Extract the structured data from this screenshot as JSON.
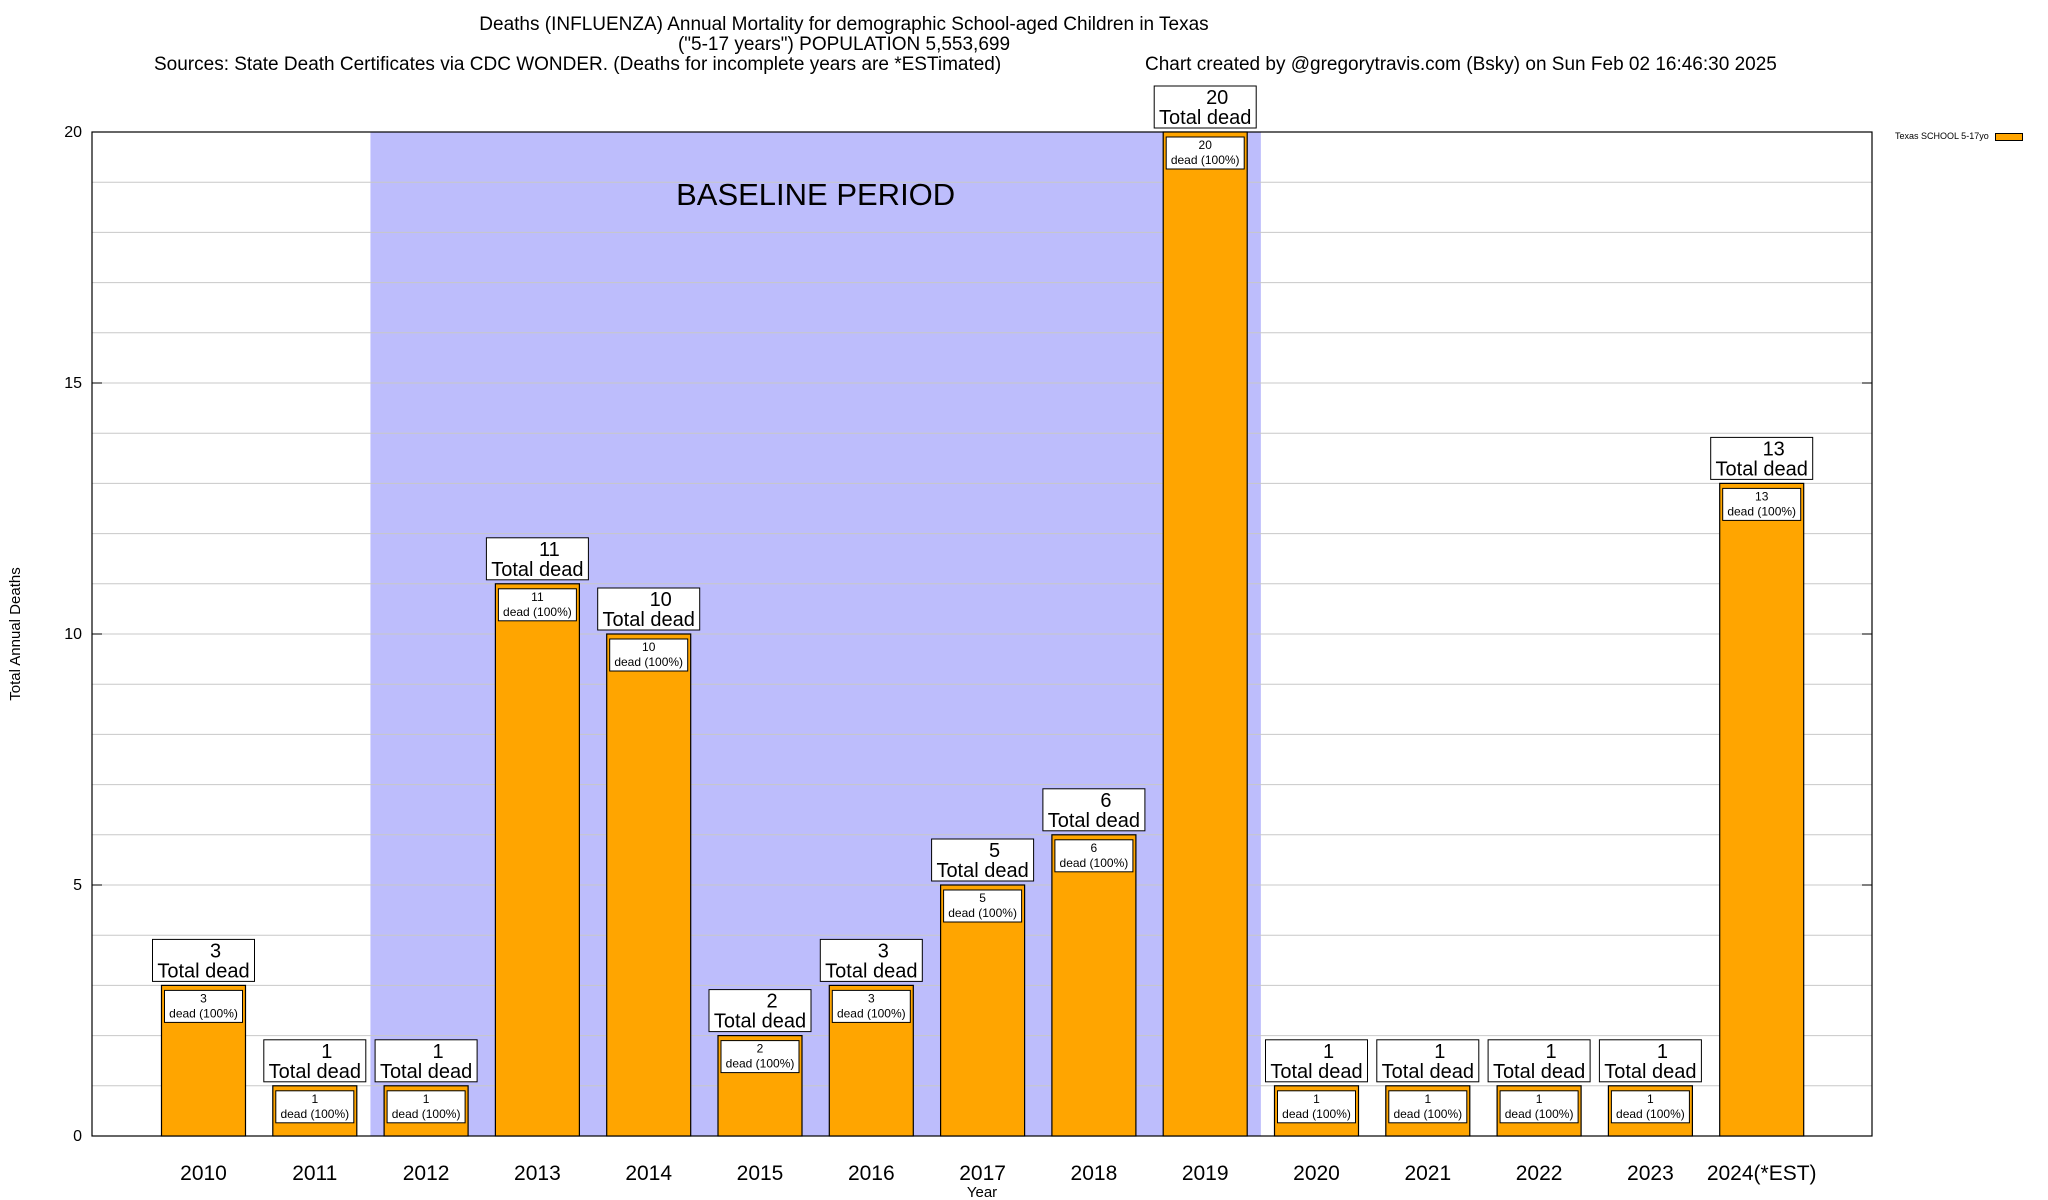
{
  "title": {
    "line1": "Deaths (INFLUENZA) Annual Mortality for demographic School-aged Children in Texas",
    "line2": "(\"5-17 years\") POPULATION 5,553,699",
    "sources": "Sources: State Death Certificates via CDC WONDER. (Deaths for incomplete years are *ESTimated)",
    "credit": "Chart created by @gregorytravis.com (Bsky) on Sun Feb 02 16:46:30 2025"
  },
  "legend": {
    "label": "Texas SCHOOL 5-17yo",
    "color": "#FFA500"
  },
  "baseline_label": "BASELINE PERIOD",
  "chart_data": {
    "type": "bar",
    "xlabel": "Year",
    "ylabel": "Total Annual Deaths",
    "ylim": [
      0,
      20
    ],
    "yticks": [
      0,
      5,
      10,
      15,
      20
    ],
    "grid": true,
    "legend_position": "top-right",
    "categories": [
      "2010",
      "2011",
      "2012",
      "2013",
      "2014",
      "2015",
      "2016",
      "2017",
      "2018",
      "2019",
      "2020",
      "2021",
      "2022",
      "2023",
      "2024(*EST)"
    ],
    "series": [
      {
        "name": "Texas SCHOOL 5-17yo",
        "color": "#FFA500",
        "values": [
          3,
          1,
          1,
          11,
          10,
          2,
          3,
          5,
          6,
          20,
          1,
          1,
          1,
          1,
          13
        ]
      }
    ],
    "baseline_period": {
      "from": "2012",
      "to": "2019",
      "color": "#BDBDFC"
    },
    "top_label_suffix": "Total dead",
    "inner_label_suffix": "dead (100%)"
  }
}
